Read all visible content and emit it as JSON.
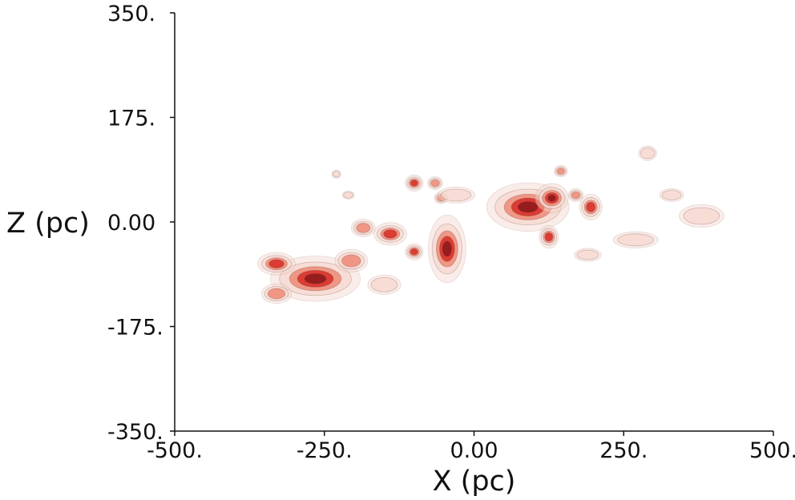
{
  "chart_data": {
    "type": "heatmap",
    "title": "",
    "xlabel": "X (pc)",
    "ylabel": "Z (pc)",
    "xlim": [
      -500,
      500
    ],
    "ylim": [
      -350,
      350
    ],
    "x_ticks": [
      {
        "value": -500,
        "label": "-500."
      },
      {
        "value": -250,
        "label": "-250."
      },
      {
        "value": 0,
        "label": "0.00"
      },
      {
        "value": 250,
        "label": "250."
      },
      {
        "value": 500,
        "label": "500."
      }
    ],
    "y_ticks": [
      {
        "value": 350,
        "label": "350."
      },
      {
        "value": 175,
        "label": "175."
      },
      {
        "value": 0,
        "label": "0.00"
      },
      {
        "value": -175,
        "label": "-175."
      },
      {
        "value": -350,
        "label": "-350."
      }
    ],
    "grid": false,
    "legend": "none",
    "colors": {
      "outer": "#f6d8cf",
      "mid": "#ef8a76",
      "inner": "#d9332b",
      "core": "#8e1a1c"
    },
    "clouds": [
      {
        "name": "cloud-west-main",
        "x": -265,
        "z": -95,
        "rx": 60,
        "rz": 28,
        "level": 4
      },
      {
        "name": "cloud-west-upper",
        "x": -330,
        "z": -70,
        "rx": 25,
        "rz": 14,
        "level": 3
      },
      {
        "name": "cloud-west-lower",
        "x": -330,
        "z": -120,
        "rx": 20,
        "rz": 12,
        "level": 2
      },
      {
        "name": "cloud-west-east",
        "x": -205,
        "z": -65,
        "rx": 22,
        "rz": 14,
        "level": 2
      },
      {
        "name": "cloud-west-blob",
        "x": -185,
        "z": -10,
        "rx": 16,
        "rz": 11,
        "level": 2
      },
      {
        "name": "cloud-center-west",
        "x": -140,
        "z": -20,
        "rx": 22,
        "rz": 14,
        "level": 3
      },
      {
        "name": "cloud-center-main",
        "x": -45,
        "z": -45,
        "rx": 25,
        "rz": 42,
        "level": 4
      },
      {
        "name": "cloud-center-small",
        "x": -100,
        "z": -50,
        "rx": 12,
        "rz": 10,
        "level": 3
      },
      {
        "name": "cloud-center-upper-a",
        "x": -100,
        "z": 65,
        "rx": 12,
        "rz": 10,
        "level": 3
      },
      {
        "name": "cloud-center-upper-b",
        "x": -65,
        "z": 65,
        "rx": 10,
        "rz": 8,
        "level": 2
      },
      {
        "name": "cloud-center-upper-c",
        "x": -55,
        "z": 40,
        "rx": 9,
        "rz": 7,
        "level": 2
      },
      {
        "name": "cloud-east-main",
        "x": 90,
        "z": 25,
        "rx": 55,
        "rz": 30,
        "level": 4
      },
      {
        "name": "cloud-east-arm",
        "x": 130,
        "z": 40,
        "rx": 22,
        "rz": 18,
        "level": 4
      },
      {
        "name": "cloud-east-knot",
        "x": 125,
        "z": -25,
        "rx": 13,
        "rz": 14,
        "level": 3
      },
      {
        "name": "cloud-east-side",
        "x": 195,
        "z": 25,
        "rx": 15,
        "rz": 16,
        "level": 3
      },
      {
        "name": "cloud-east-small-a",
        "x": 170,
        "z": 45,
        "rx": 10,
        "rz": 8,
        "level": 2
      },
      {
        "name": "cloud-east-small-b",
        "x": 145,
        "z": 85,
        "rx": 9,
        "rz": 7,
        "level": 2
      },
      {
        "name": "cloud-far-east-a",
        "x": 380,
        "z": 10,
        "rx": 30,
        "rz": 14,
        "level": 1
      },
      {
        "name": "cloud-far-east-b",
        "x": 290,
        "z": 115,
        "rx": 12,
        "rz": 9,
        "level": 1
      },
      {
        "name": "cloud-far-east-c",
        "x": 270,
        "z": -30,
        "rx": 30,
        "rz": 10,
        "level": 1
      },
      {
        "name": "cloud-far-east-d",
        "x": 330,
        "z": 45,
        "rx": 16,
        "rz": 8,
        "level": 1
      },
      {
        "name": "cloud-east-lower",
        "x": 190,
        "z": -55,
        "rx": 18,
        "rz": 8,
        "level": 1
      },
      {
        "name": "cloud-south-wisp",
        "x": -150,
        "z": -105,
        "rx": 22,
        "rz": 12,
        "level": 1
      },
      {
        "name": "cloud-north-wisp",
        "x": -30,
        "z": 45,
        "rx": 25,
        "rz": 10,
        "level": 1
      },
      {
        "name": "cloud-upper-left",
        "x": -230,
        "z": 80,
        "rx": 6,
        "rz": 5,
        "level": 1
      },
      {
        "name": "cloud-left-wisp",
        "x": -210,
        "z": 45,
        "rx": 8,
        "rz": 5,
        "level": 1
      }
    ]
  }
}
